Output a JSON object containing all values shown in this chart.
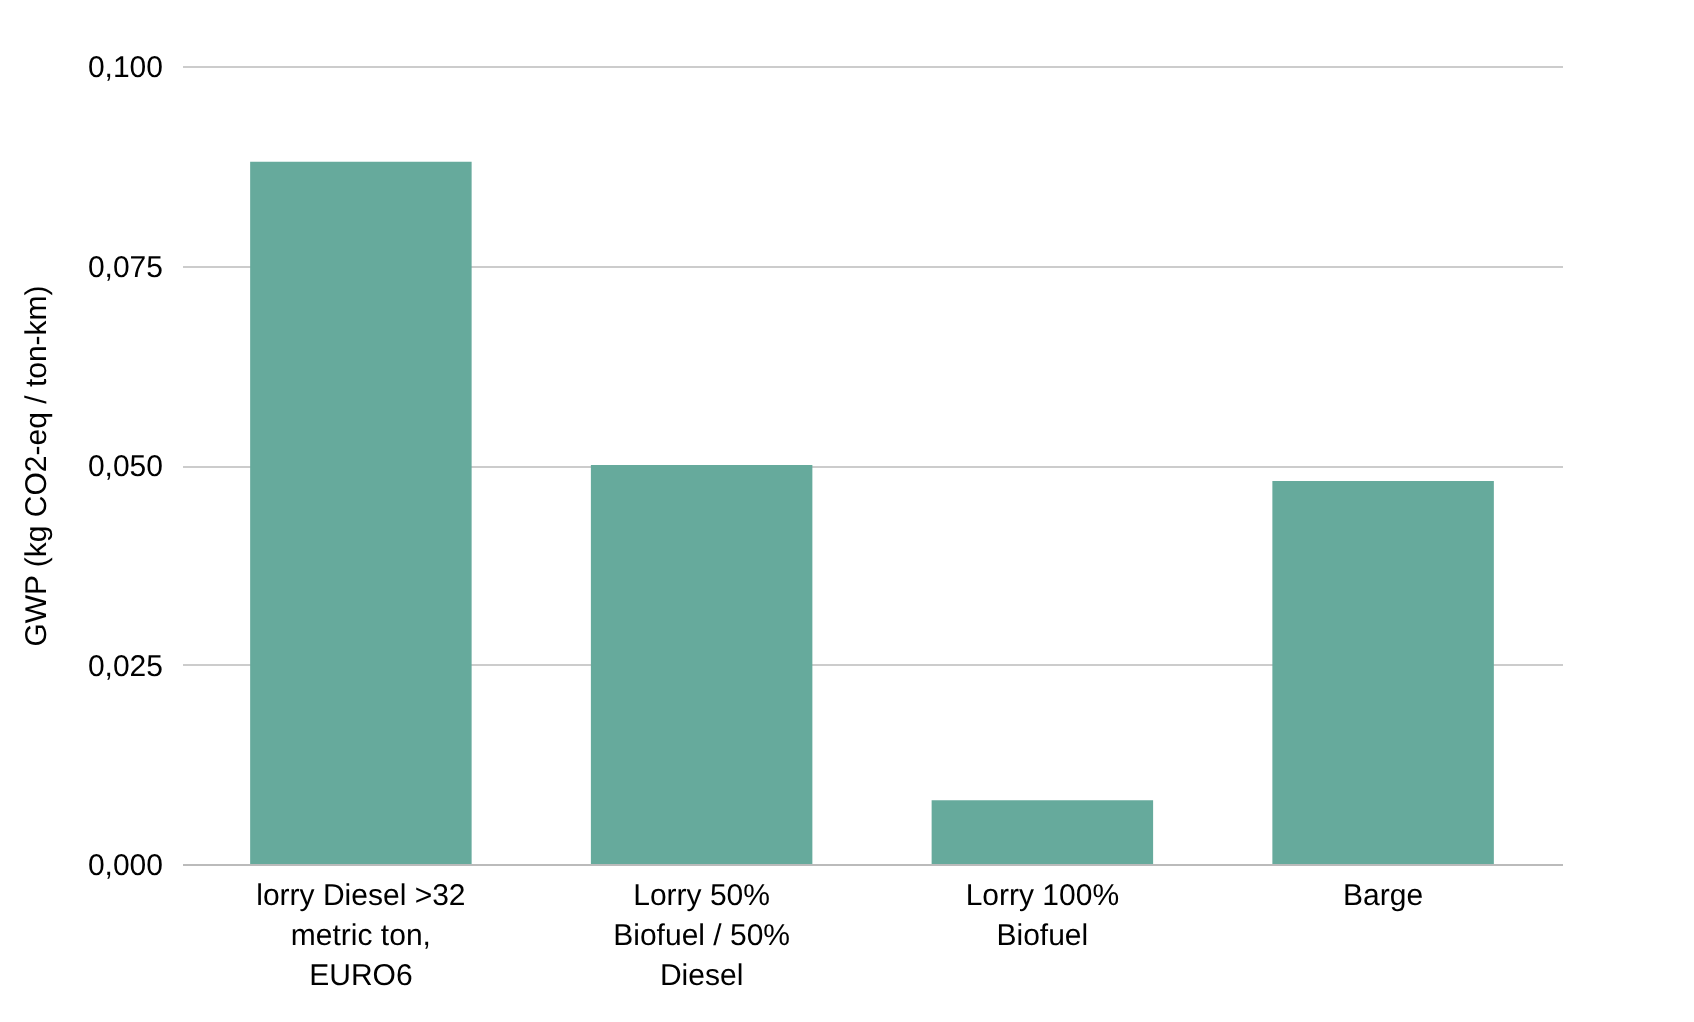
{
  "chart_data": {
    "type": "bar",
    "ylabel": "GWP (kg CO2-eq / ton-km)",
    "categories": [
      "lorry Diesel >32 metric ton, EURO6",
      "Lorry 50% Biofuel / 50% Diesel",
      "Lorry 100% Biofuel",
      "Barge"
    ],
    "values": [
      0.088,
      0.05,
      0.008,
      0.048
    ],
    "color": "#66aa9c",
    "ylim": [
      0,
      0.1
    ],
    "yticks": [
      {
        "value": 0,
        "label": "0,000"
      },
      {
        "value": 0.025,
        "label": "0,025"
      },
      {
        "value": 0.05,
        "label": "0,050"
      },
      {
        "value": 0.075,
        "label": "0,075"
      },
      {
        "value": 0.1,
        "label": "0,100"
      }
    ],
    "grid": "y"
  }
}
